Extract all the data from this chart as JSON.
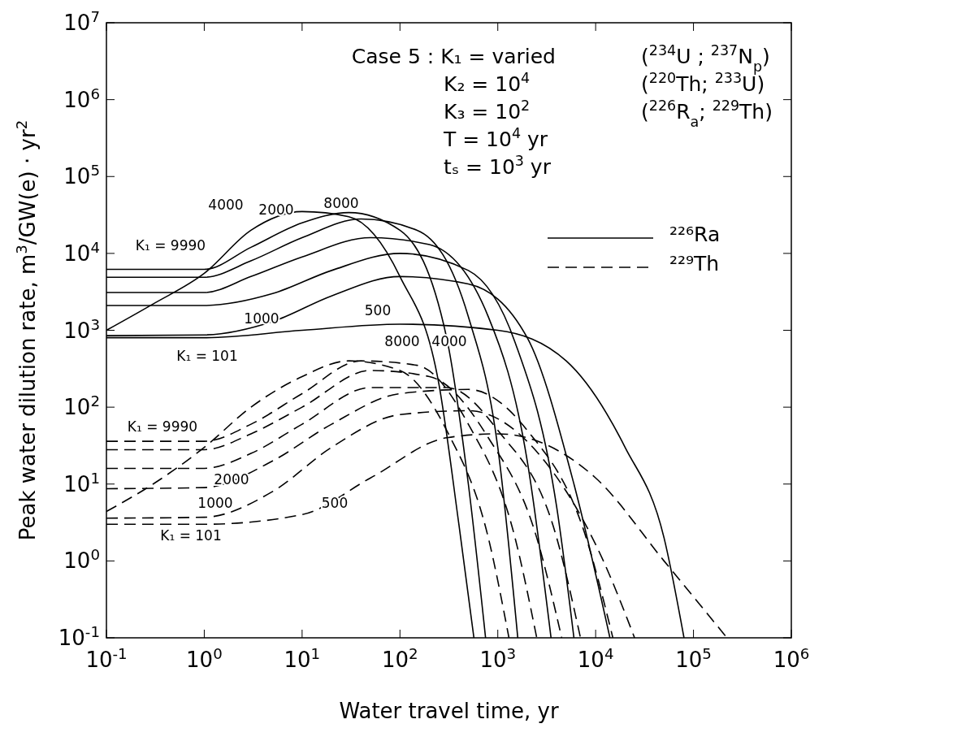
{
  "chart_data": {
    "type": "line",
    "xlabel": "Water travel time, yr",
    "ylabel": "Peak water dilution rate, m$^{3}$/GW(e) · yr$^{2}$",
    "log": "xy",
    "grid": false,
    "legend": "top right",
    "xlim": [
      0.1,
      1000000
    ],
    "ylim": [
      0.1,
      10000000
    ],
    "xticks": [
      {
        "value": 0.1,
        "label": "10$^{-1}$"
      },
      {
        "value": 1,
        "label": "10$^{0}$"
      },
      {
        "value": 10,
        "label": "10$^{1}$"
      },
      {
        "value": 100,
        "label": "10$^{2}$"
      },
      {
        "value": 1000,
        "label": "10$^{3}$"
      },
      {
        "value": 10000,
        "label": "10$^{4}$"
      },
      {
        "value": 100000,
        "label": "10$^{5}$"
      },
      {
        "value": 1000000,
        "label": "10$^{6}$"
      }
    ],
    "yticks": [
      {
        "value": 0.1,
        "label": "10$^{-1}$"
      },
      {
        "value": 1,
        "label": "10$^{0}$"
      },
      {
        "value": 10,
        "label": "10$^{1}$"
      },
      {
        "value": 100,
        "label": "10$^{2}$"
      },
      {
        "value": 1000,
        "label": "10$^{3}$"
      },
      {
        "value": 10000,
        "label": "10$^{4}$"
      },
      {
        "value": 100000,
        "label": "10$^{5}$"
      },
      {
        "value": 1000000,
        "label": "10$^{6}$"
      },
      {
        "value": 10000000,
        "label": "10$^{7}$"
      }
    ],
    "series": [
      {
        "name": "²²⁶Ra",
        "color": "#000000",
        "line_style": "solid",
        "x": [
          0.1,
          0.3,
          1,
          3,
          10,
          30,
          100,
          250,
          400,
          570
        ],
        "values": [
          1000,
          2200,
          5500,
          20000,
          35000,
          30000,
          5000,
          200,
          3,
          0.1
        ]
      },
      {
        "color": "#000000",
        "line_style": "solid",
        "x": [
          0.1,
          1,
          3,
          10,
          30,
          100,
          300,
          500,
          750
        ],
        "values": [
          6200,
          6200,
          12000,
          25000,
          34000,
          20000,
          800,
          10,
          0.1
        ]
      },
      {
        "color": "#000000",
        "line_style": "solid",
        "x": [
          0.1,
          1,
          3,
          10,
          40,
          150,
          500,
          1000,
          1600
        ],
        "values": [
          4900,
          4900,
          8000,
          16000,
          28000,
          20000,
          1500,
          30,
          0.1
        ]
      },
      {
        "color": "#000000",
        "line_style": "solid",
        "x": [
          0.1,
          1,
          3,
          10,
          50,
          200,
          800,
          2000,
          3500
        ],
        "values": [
          3100,
          3100,
          5000,
          9000,
          16000,
          13000,
          1500,
          20,
          0.1
        ]
      },
      {
        "color": "#000000",
        "line_style": "solid",
        "x": [
          0.1,
          1,
          5,
          20,
          100,
          500,
          1500,
          4000,
          6000
        ],
        "values": [
          2100,
          2100,
          3000,
          6000,
          10000,
          6000,
          700,
          5,
          0.1
        ]
      },
      {
        "color": "#000000",
        "line_style": "solid",
        "x": [
          0.1,
          1,
          5,
          20,
          100,
          500,
          2000,
          6000,
          14000
        ],
        "values": [
          850,
          870,
          1300,
          2800,
          5000,
          4000,
          800,
          10,
          0.1
        ]
      },
      {
        "color": "#000000",
        "line_style": "solid",
        "x": [
          0.1,
          1,
          10,
          100,
          1000,
          5000,
          20000,
          50000,
          80000
        ],
        "values": [
          800,
          800,
          1000,
          1200,
          1000,
          400,
          30,
          2,
          0.1
        ]
      },
      {
        "name": "²²⁹Th",
        "color": "#000000",
        "line_style": "dashed",
        "x": [
          0.1,
          0.3,
          1,
          3,
          10,
          30,
          100,
          300,
          800,
          1300
        ],
        "values": [
          4.4,
          10,
          30,
          100,
          250,
          400,
          300,
          50,
          2,
          0.1
        ]
      },
      {
        "color": "#000000",
        "line_style": "dashed",
        "x": [
          0.1,
          1,
          3,
          10,
          40,
          150,
          500,
          1500,
          2500
        ],
        "values": [
          36,
          36,
          60,
          150,
          400,
          350,
          60,
          2,
          0.1
        ]
      },
      {
        "color": "#000000",
        "line_style": "dashed",
        "x": [
          0.1,
          1,
          3,
          10,
          50,
          200,
          800,
          2500,
          4500
        ],
        "values": [
          28,
          28,
          45,
          100,
          300,
          250,
          40,
          2,
          0.1
        ]
      },
      {
        "color": "#000000",
        "line_style": "dashed",
        "x": [
          0.1,
          1,
          3,
          10,
          50,
          300,
          1000,
          4000,
          7000
        ],
        "values": [
          16,
          16,
          25,
          60,
          180,
          180,
          50,
          2,
          0.1
        ]
      },
      {
        "color": "#000000",
        "line_style": "dashed",
        "x": [
          0.1,
          1,
          5,
          20,
          100,
          500,
          2000,
          8000,
          15000
        ],
        "values": [
          8.7,
          9,
          20,
          60,
          150,
          170,
          50,
          2,
          0.1
        ]
      },
      {
        "color": "#000000",
        "line_style": "dashed",
        "x": [
          0.1,
          1,
          5,
          20,
          100,
          500,
          3000,
          12000,
          25000
        ],
        "values": [
          3.6,
          3.7,
          8,
          30,
          80,
          90,
          20,
          1,
          0.1
        ]
      },
      {
        "color": "#000000",
        "line_style": "dashed",
        "x": [
          0.1,
          1,
          10,
          50,
          300,
          1000,
          10000,
          50000,
          220000
        ],
        "values": [
          3,
          3,
          4,
          12,
          40,
          45,
          12,
          1,
          0.1
        ]
      }
    ],
    "annotations": [
      "Case 5 : K₁ = varied",
      "K₂ = 10$^{4}$",
      "K₃ = 10$^{2}$",
      "T  = 10$^{4}$ yr",
      "tₛ = 10$^{3}$ yr",
      "($^{234}$U ; $^{237}$N$_{p}$)",
      "($^{220}$Th; $^{233}$U)",
      "($^{226}$R$_{a}$; $^{229}$Th)",
      "4000",
      "2000",
      "8000",
      "K₁ = 9990",
      "1000",
      "500",
      "K₁ = 101",
      "8000",
      "4000",
      "K₁ = 9990",
      "2000",
      "1000",
      "500",
      "K₁ = 101"
    ]
  }
}
